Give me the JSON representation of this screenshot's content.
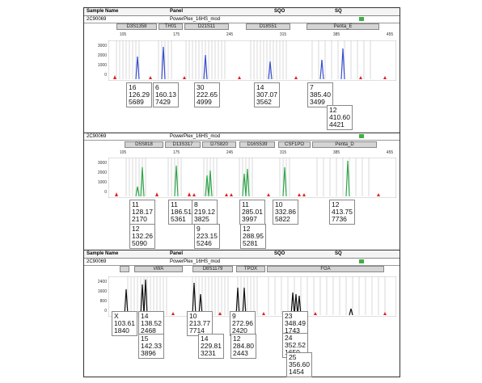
{
  "header": {
    "sample_name": "Sample Name",
    "panel": "Panel",
    "sqo": "SQO",
    "sq": "SQ"
  },
  "panels": [
    {
      "sample_id": "2C90069",
      "panel_name": "PowerPlex_16HS_mod",
      "dye_color": "#3a4fd0",
      "loci": [
        "D3S1358",
        "TH01",
        "D21S11",
        "D18S51",
        "Penta_E"
      ],
      "ticks": [
        "105",
        "175",
        "245",
        "315",
        "385",
        "455"
      ],
      "yticks": [
        "3000",
        "2000",
        "1000",
        "0"
      ],
      "alleles": [
        [
          "16",
          "126.29",
          "5689"
        ],
        [
          "6",
          "160.13",
          "7429"
        ],
        [
          "30",
          "222.65",
          "4999"
        ],
        [
          "14",
          "307.07",
          "3562"
        ],
        [
          "7",
          "385.40",
          "3499"
        ],
        [
          "12",
          "410.60",
          "4421"
        ]
      ]
    },
    {
      "sample_id": "2C90069",
      "panel_name": "PowerPlex_16HS_mod",
      "dye_color": "#2fa84a",
      "loci": [
        "D5S818",
        "D13S317",
        "D7S820",
        "D16S539",
        "CSF1PO",
        "Penta_D"
      ],
      "ticks": [
        "105",
        "175",
        "245",
        "315",
        "385",
        "455"
      ],
      "yticks": [
        "3000",
        "2000",
        "1000",
        "0"
      ],
      "alleles": [
        [
          "11",
          "128.17",
          "2170"
        ],
        [
          "12",
          "132.26",
          "5090"
        ],
        [
          "11",
          "186.51",
          "5361"
        ],
        [
          "8",
          "219.12",
          "3825"
        ],
        [
          "9",
          "223.15",
          "5246"
        ],
        [
          "11",
          "285.01",
          "3997"
        ],
        [
          "12",
          "288.95",
          "5281"
        ],
        [
          "10",
          "332.86",
          "5822"
        ],
        [
          "12",
          "413.75",
          "7736"
        ]
      ]
    },
    {
      "sample_id": "2C90069",
      "panel_name": "PowerPlex_16HS_mod",
      "dye_color": "#111111",
      "loci": [
        "",
        "vWA",
        "D8S1179",
        "TPOX",
        "FGA"
      ],
      "ticks": [
        "105",
        "175",
        "245",
        "315",
        "385",
        "455"
      ],
      "yticks": [
        "2400",
        "1600",
        "800",
        "0"
      ],
      "alleles": [
        [
          "X",
          "103.61",
          "1840"
        ],
        [
          "14",
          "138.52",
          "2468"
        ],
        [
          "15",
          "142.33",
          "3896"
        ],
        [
          "10",
          "213.77",
          "7714"
        ],
        [
          "14",
          "229.81",
          "3231"
        ],
        [
          "9",
          "272.96",
          "2420"
        ],
        [
          "12",
          "284.80",
          "2443"
        ],
        [
          "23",
          "348.49",
          "1743"
        ],
        [
          "24",
          "352.52",
          "1650"
        ],
        [
          "25",
          "356.60",
          "1454"
        ]
      ]
    }
  ]
}
